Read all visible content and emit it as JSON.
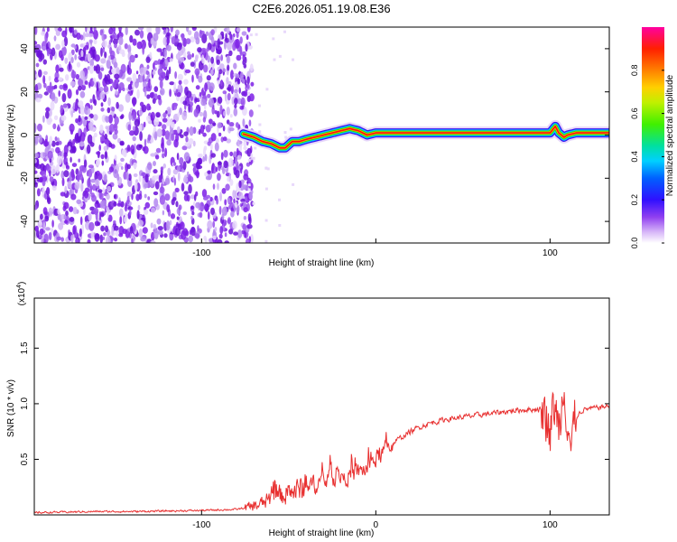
{
  "title": "C2E6.2026.051.19.08.E36",
  "chart_data": [
    {
      "type": "heatmap",
      "title": "C2E6.2026.051.19.08.E36",
      "xlabel": "Height of straight line (km)",
      "ylabel": "Frequency (Hz)",
      "xlim": [
        -196,
        134
      ],
      "ylim": [
        -50,
        50
      ],
      "x_ticks": [
        -100,
        0,
        100
      ],
      "x_tick_labels": [
        "-100",
        "",
        "100"
      ],
      "y_ticks": [
        -40,
        -20,
        0,
        20,
        40
      ],
      "y_tick_labels": [
        "-40",
        "-20",
        "0",
        "20",
        "40"
      ],
      "noise_region_x": [
        -196,
        -74
      ],
      "signal_track": {
        "x": [
          -76,
          -70,
          -65,
          -60,
          -55,
          -52,
          -48,
          -44,
          -40,
          -35,
          -30,
          -25,
          -20,
          -15,
          -10,
          -5,
          0,
          10,
          20,
          40,
          60,
          80,
          100,
          103,
          105,
          108,
          110,
          115,
          134
        ],
        "y": [
          0.5,
          -1,
          -3,
          -4,
          -6,
          -6,
          -3,
          -3,
          -2,
          -1,
          0,
          1,
          2,
          3,
          2,
          0,
          1,
          1,
          1,
          1,
          1,
          1,
          1,
          4,
          1,
          -1,
          0,
          1,
          1
        ]
      },
      "colorbar": {
        "label": "Normalized spectral amplitude",
        "ticks": [
          0.0,
          0.2,
          0.4,
          0.6,
          0.8
        ],
        "tick_labels": [
          "0.0",
          "0.2",
          "0.4",
          "0.6",
          "0.8"
        ]
      }
    },
    {
      "type": "line",
      "xlabel": "Height of straight line (km)",
      "ylabel": "SNR (10 * v/v)",
      "scale_label_base": "(x10",
      "scale_label_exp": "4",
      "scale_label_end": ")",
      "xlim": [
        -196,
        134
      ],
      "ylim": [
        0,
        1.95
      ],
      "x_ticks": [
        -100,
        0,
        100
      ],
      "x_tick_labels": [
        "-100",
        "0",
        "100"
      ],
      "y_ticks": [
        0.5,
        1.0,
        1.5
      ],
      "y_tick_labels": [
        "0.5",
        "1.0",
        "1.5"
      ],
      "series": [
        {
          "name": "SNR",
          "color": "#e83030",
          "x": [
            -196,
            -180,
            -160,
            -140,
            -120,
            -100,
            -90,
            -80,
            -72,
            -65,
            -60,
            -55,
            -50,
            -45,
            -40,
            -35,
            -30,
            -25,
            -20,
            -15,
            -10,
            -5,
            0,
            5,
            10,
            15,
            20,
            25,
            30,
            40,
            50,
            60,
            70,
            80,
            90,
            95,
            98,
            100,
            102,
            105,
            108,
            110,
            112,
            115,
            120,
            134
          ],
          "y": [
            0.02,
            0.025,
            0.03,
            0.03,
            0.035,
            0.04,
            0.045,
            0.05,
            0.07,
            0.1,
            0.14,
            0.17,
            0.2,
            0.22,
            0.25,
            0.28,
            0.3,
            0.33,
            0.36,
            0.35,
            0.38,
            0.42,
            0.5,
            0.58,
            0.65,
            0.7,
            0.75,
            0.79,
            0.82,
            0.86,
            0.88,
            0.9,
            0.92,
            0.94,
            0.95,
            0.95,
            0.9,
            0.7,
            1.0,
            0.8,
            1.2,
            0.9,
            0.6,
            0.9,
            0.95,
            0.98
          ]
        }
      ]
    }
  ],
  "colors": {
    "noise": "#7c1fe6",
    "signal_line": "#e83030",
    "axis": "#000000"
  }
}
